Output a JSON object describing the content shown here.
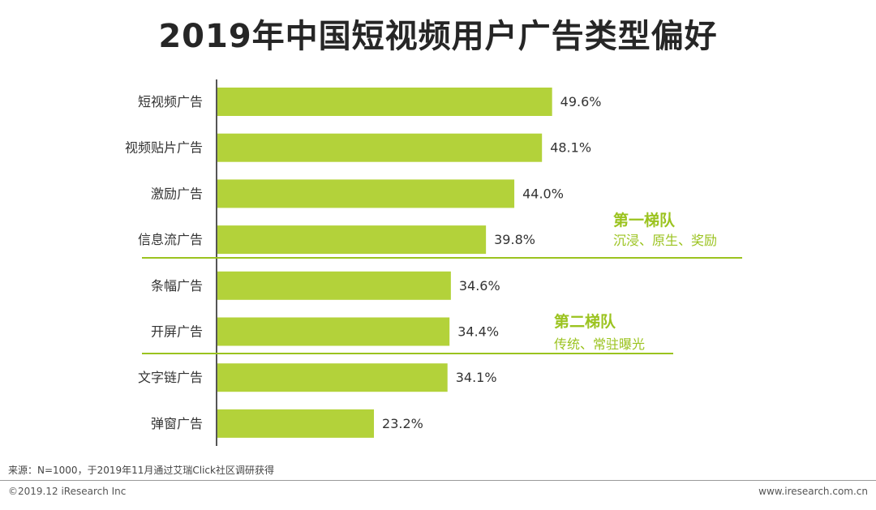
{
  "title": "2019年中国短视频用户广告类型偏好",
  "tiers": [
    {
      "name": "第一梯队",
      "desc": "沉浸、原生、奖励"
    },
    {
      "name": "第二梯队",
      "desc": "传统、常驻曝光"
    }
  ],
  "source": "来源：N=1000，于2019年11月通过艾瑞Click社区调研获得",
  "copyright": "©2019.12 iResearch Inc",
  "website": "www.iresearch.com.cn",
  "colors": {
    "bar": "#b3d23a",
    "accent": "#9bc31f",
    "axis": "#555555"
  },
  "chart_data": {
    "type": "bar",
    "orientation": "horizontal",
    "categories": [
      "短视频广告",
      "视频贴片广告",
      "激励广告",
      "信息流广告",
      "条幅广告",
      "开屏广告",
      "文字链广告",
      "弹窗广告"
    ],
    "values": [
      49.6,
      48.1,
      44.0,
      39.8,
      34.6,
      34.4,
      34.1,
      23.2
    ],
    "labels": [
      "49.6%",
      "48.1%",
      "44.0%",
      "39.8%",
      "34.6%",
      "34.4%",
      "34.1%",
      "23.2%"
    ],
    "unit": "%",
    "xlim": [
      0,
      60
    ],
    "grid": false,
    "legend": "none"
  }
}
